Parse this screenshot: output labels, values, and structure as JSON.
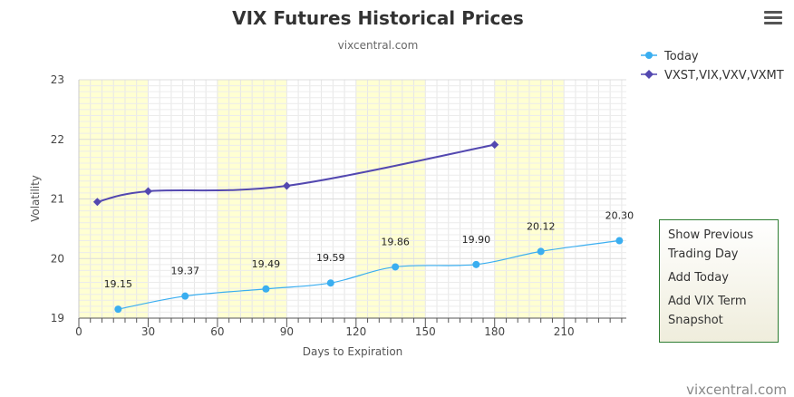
{
  "chart_data": {
    "type": "line",
    "title": "VIX Futures Historical Prices",
    "subtitle": "vixcentral.com",
    "xlabel": "Days to Expiration",
    "ylabel": "Volatility",
    "xlim": [
      0,
      237
    ],
    "ylim": [
      19,
      23
    ],
    "x_ticks": [
      0,
      30,
      60,
      90,
      120,
      150,
      180,
      210
    ],
    "y_ticks": [
      19,
      20,
      21,
      22,
      23
    ],
    "grid": true,
    "legend_position": "top-right",
    "series": [
      {
        "name": "Today",
        "color": "#3aaef0",
        "marker": "circle",
        "x": [
          17,
          46,
          81,
          109,
          137,
          172,
          200,
          234
        ],
        "y": [
          19.15,
          19.37,
          19.49,
          19.59,
          19.86,
          19.9,
          20.12,
          20.3
        ],
        "labels": [
          "19.15",
          "19.37",
          "19.49",
          "19.59",
          "19.86",
          "19.90",
          "20.12",
          "20.30"
        ]
      },
      {
        "name": "VXST,VIX,VXV,VXMT",
        "color": "#5348b0",
        "marker": "diamond",
        "x": [
          8,
          30,
          90,
          180
        ],
        "y": [
          20.95,
          21.13,
          21.22,
          21.91
        ]
      }
    ],
    "shaded_bands": [
      [
        0,
        30
      ],
      [
        60,
        90
      ],
      [
        120,
        150
      ],
      [
        180,
        210
      ]
    ],
    "shade_color": "#ffffd2"
  },
  "menu": {
    "items": [
      "Show Previous",
      "Trading Day",
      "Add Today",
      "Add VIX Term",
      "Snapshot"
    ]
  },
  "credit": "vixcentral.com"
}
